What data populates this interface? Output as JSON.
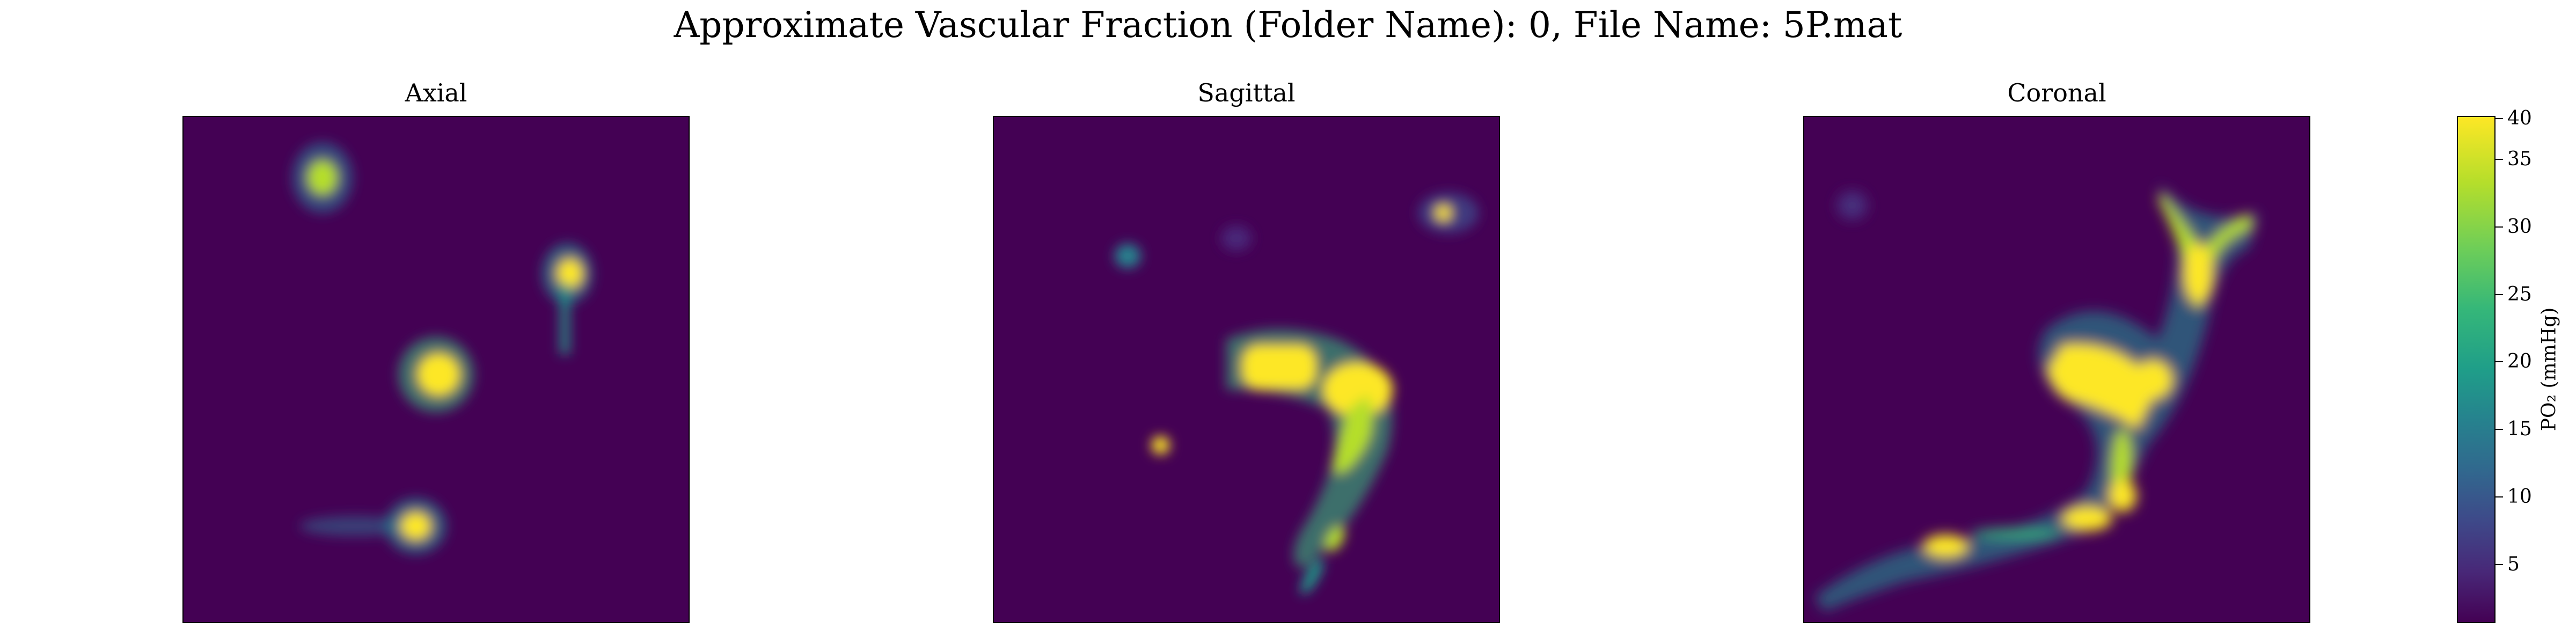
{
  "chart_data": {
    "type": "heatmap",
    "title": "Approximate Vascular Fraction (Folder Name): 0, File Name: 5P.mat",
    "colormap": "viridis",
    "panels": [
      {
        "title": "Axial"
      },
      {
        "title": "Sagittal"
      },
      {
        "title": "Coronal"
      }
    ],
    "colorbar": {
      "label": "PO₂ (mmHg)",
      "range": [
        0,
        40
      ],
      "ticks": [
        "5",
        "10",
        "15",
        "20",
        "25",
        "30",
        "35",
        "40"
      ]
    }
  }
}
